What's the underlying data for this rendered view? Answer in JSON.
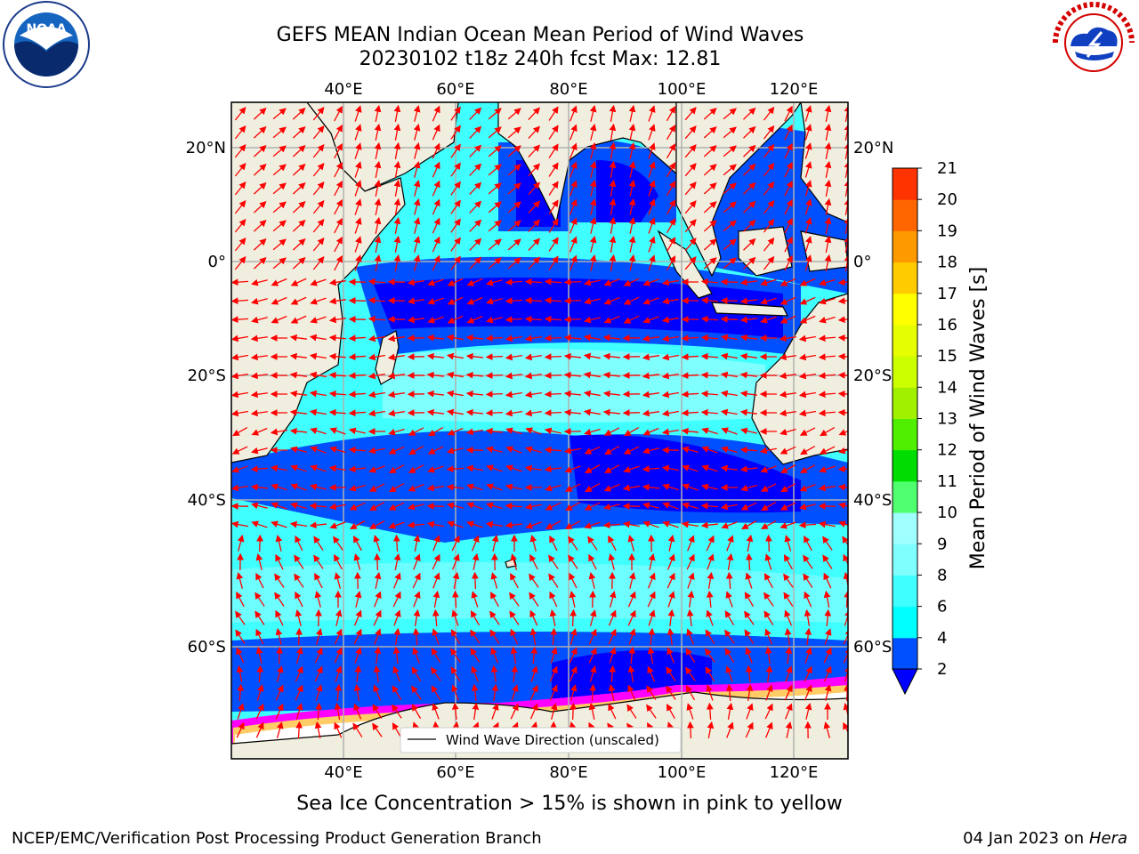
{
  "title_line1": "GEFS MEAN Indian Ocean Mean Period of Wind Waves",
  "title_line2": "20230102 t18z 240h fcst   Max: 12.81",
  "subtitle": "Sea Ice Concentration > 15% is shown in pink to yellow",
  "footer_left": "NCEP/EMC/Verification Post Processing Product Generation Branch",
  "footer_right_prefix": "04 Jan 2023 on ",
  "footer_right_host": "Hera",
  "legend_label": "Wind Wave Direction (unscaled)",
  "colorbar": {
    "label": "Mean Period of Wind Waves [s]",
    "ticks": [
      "2",
      "4",
      "6",
      "8",
      "9",
      "10",
      "11",
      "12",
      "13",
      "14",
      "15",
      "16",
      "17",
      "18",
      "19",
      "20",
      "21"
    ],
    "colors": [
      "#0050ff",
      "#00ffff",
      "#40ffff",
      "#80ffff",
      "#a0ffff",
      "#50ff70",
      "#00dd00",
      "#50ee00",
      "#a0f000",
      "#ccff00",
      "#e6ff00",
      "#ffff00",
      "#ffcc00",
      "#ff9900",
      "#ff6600",
      "#ff3300",
      "#ff0000"
    ],
    "under_color": "#0000ff"
  },
  "axes": {
    "lon_ticks": [
      "40°E",
      "60°E",
      "80°E",
      "100°E",
      "120°E"
    ],
    "lat_ticks": [
      "20°N",
      "0°",
      "20°S",
      "40°S",
      "60°S"
    ],
    "lon_range": [
      20,
      130
    ],
    "lat_range": [
      -75,
      27
    ]
  },
  "logos": {
    "noaa_text": "NOAA",
    "noaa_ring_text": "NATIONAL OCEANIC AND ATMOSPHERIC ADMINISTRATION · U.S. DEPARTMENT OF COMMERCE",
    "nws_ring_text": "NATIONAL WEATHER SERVICE"
  },
  "colors": {
    "land": "#f0efdf",
    "arrow": "#ff0000",
    "grid": "#b0b0b0"
  }
}
